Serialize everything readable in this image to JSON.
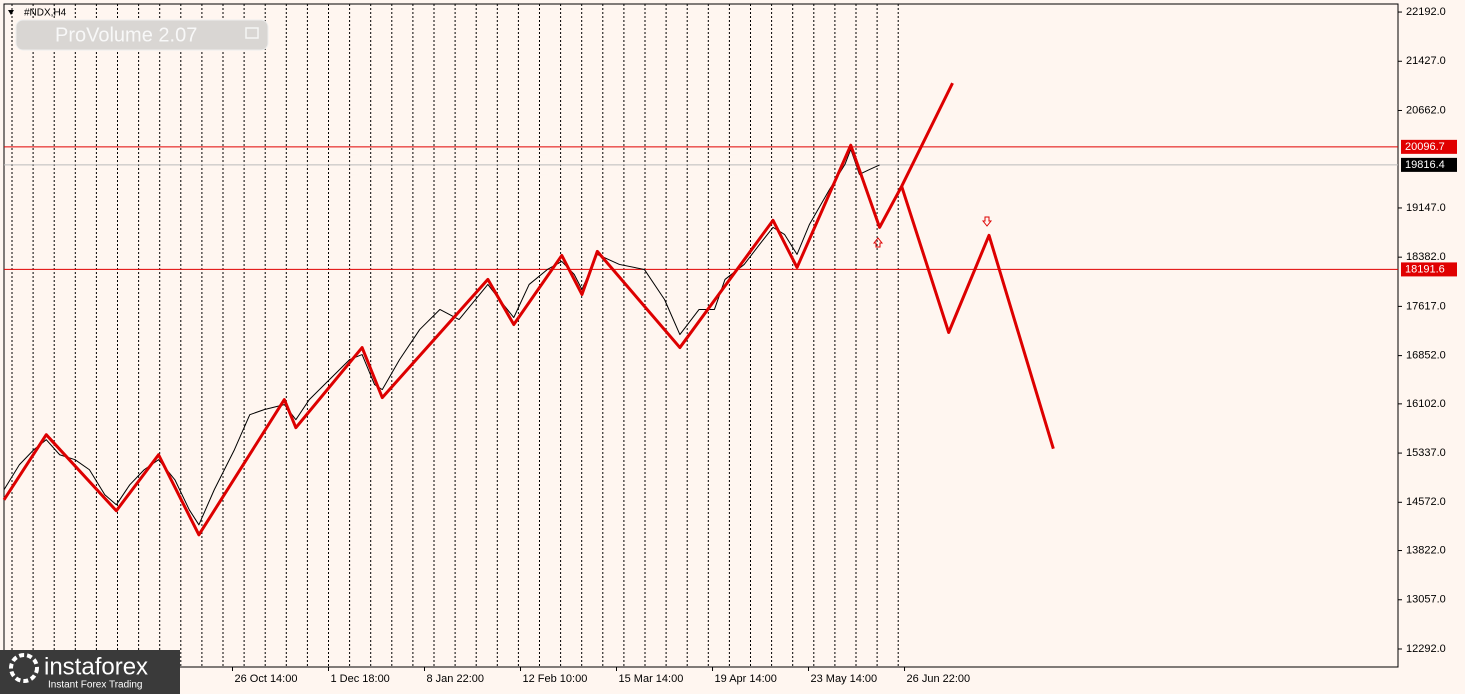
{
  "header": {
    "symbol": "#NDX,H4",
    "indicator": "ProVolume 2.07"
  },
  "brand": {
    "name": "instaforex",
    "tagline": "Instant Forex Trading"
  },
  "chart_data": {
    "type": "line",
    "xlim": [
      -1.38,
      13.14
    ],
    "xticks": [
      {
        "value": 1,
        "label": "26 Oct 14:00"
      },
      {
        "value": 2,
        "label": "1 Dec 18:00"
      },
      {
        "value": 3,
        "label": "8 Jan 22:00"
      },
      {
        "value": 4,
        "label": "12 Feb 10:00"
      },
      {
        "value": 5,
        "label": "15 Mar 14:00"
      },
      {
        "value": 6,
        "label": "19 Apr 14:00"
      },
      {
        "value": 7,
        "label": "23 May 14:00"
      },
      {
        "value": 8,
        "label": "26 Jun 22:00"
      }
    ],
    "ylim": [
      12012,
      22317
    ],
    "yticks": [
      {
        "value": 22192,
        "label": "22192.0"
      },
      {
        "value": 21427,
        "label": "21427.0"
      },
      {
        "value": 20662,
        "label": "20662.0"
      },
      {
        "value": 19147,
        "label": "19147.0"
      },
      {
        "value": 18382,
        "label": "18382.0"
      },
      {
        "value": 17617,
        "label": "17617.0"
      },
      {
        "value": 16852,
        "label": "16852.0"
      },
      {
        "value": 16102,
        "label": "16102.0"
      },
      {
        "value": 15337,
        "label": "15337.0"
      },
      {
        "value": 14572,
        "label": "14572.0"
      },
      {
        "value": 13822,
        "label": "13822.0"
      },
      {
        "value": 13057,
        "label": "13057.0"
      },
      {
        "value": 12292,
        "label": "12292.0"
      }
    ],
    "levels": [
      {
        "value": 20096.7,
        "color": "#e00000"
      },
      {
        "value": 18191.6,
        "color": "#e00000"
      }
    ],
    "current_price": {
      "value": 19816.4,
      "color": "#000000"
    },
    "series": [
      {
        "color": "#000000",
        "width": 1,
        "x": [
          -1.38,
          -1.22,
          -1.07,
          -0.94,
          -0.8,
          -0.64,
          -0.49,
          -0.33,
          -0.21,
          -0.07,
          0.08,
          0.23,
          0.4,
          0.55,
          0.65,
          0.81,
          1.02,
          1.18,
          1.33,
          1.54,
          1.66,
          1.8,
          2.01,
          2.22,
          2.35,
          2.48,
          2.56,
          2.74,
          2.95,
          3.16,
          3.36,
          3.66,
          3.78,
          3.93,
          4.09,
          4.28,
          4.43,
          4.56,
          4.64,
          4.8,
          5.03,
          5.29,
          5.5,
          5.66,
          5.86,
          6.02,
          6.13,
          6.33,
          6.49,
          6.63,
          6.75,
          6.88,
          7.01,
          7.22,
          7.38,
          7.44,
          7.53,
          7.64,
          7.74
        ],
        "values": [
          14767,
          15156,
          15389,
          15545,
          15311,
          15234,
          15078,
          14689,
          14533,
          14844,
          15078,
          15234,
          14922,
          14455,
          14222,
          14767,
          15389,
          15934,
          16012,
          16090,
          15856,
          16168,
          16479,
          16790,
          16868,
          16401,
          16323,
          16790,
          17257,
          17569,
          17413,
          17958,
          17724,
          17444,
          17958,
          18191,
          18316,
          18113,
          17880,
          18425,
          18269,
          18191,
          17724,
          17179,
          17569,
          17569,
          18036,
          18269,
          18580,
          18845,
          18736,
          18425,
          18892,
          19437,
          19826,
          20059,
          19670,
          19748,
          19816
        ]
      },
      {
        "color": "#dd0000",
        "width": 3,
        "x": [
          -1.38,
          -0.94,
          -0.21,
          0.23,
          0.65,
          1.54,
          1.66,
          2.35,
          2.56,
          3.66,
          3.93,
          4.43,
          4.64,
          4.8,
          5.66,
          6.63,
          6.88,
          7.44,
          7.74,
          7.97,
          8.5
        ],
        "values": [
          14611,
          15623,
          14440,
          15311,
          14066,
          16168,
          15732,
          16977,
          16199,
          18036,
          17335,
          18409,
          17802,
          18472,
          16977,
          18954,
          18222,
          20122,
          18845,
          19483,
          21087
        ]
      },
      {
        "color": "#dd0000",
        "width": 3,
        "x": [
          7.97,
          8.46,
          8.88,
          9.55
        ],
        "values": [
          19483,
          17211,
          18721,
          15405
        ]
      }
    ]
  }
}
